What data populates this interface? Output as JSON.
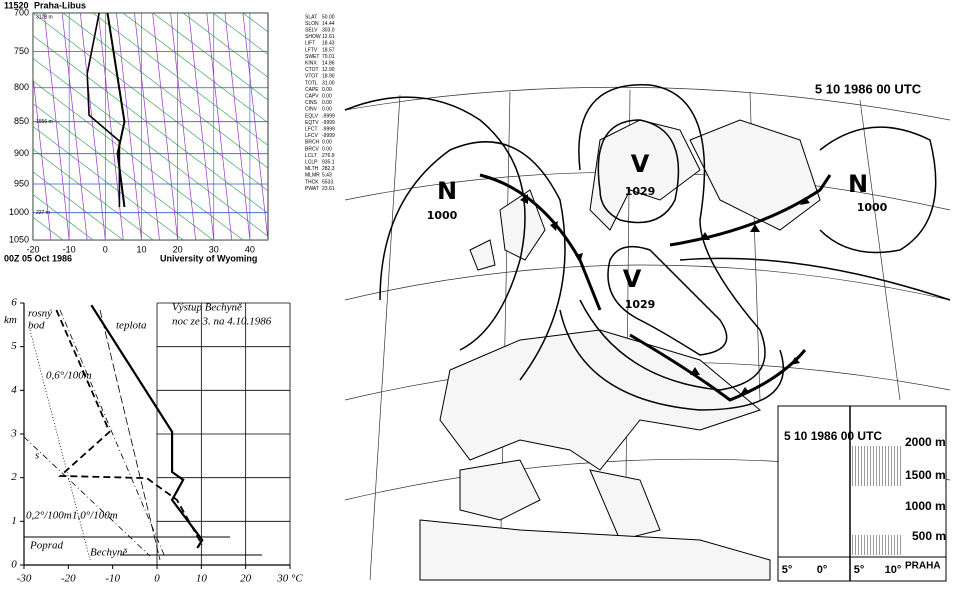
{
  "sounding": {
    "station": "11520",
    "name": "Praha-Libus",
    "time": "00Z 05 Oct 1986",
    "source": "University of Wyoming",
    "ylim": [
      700,
      1050
    ],
    "yticks": [
      700,
      750,
      800,
      850,
      900,
      950,
      1000,
      1050
    ],
    "xlim": [
      -20,
      45
    ],
    "xticks": [
      -20,
      -10,
      0,
      10,
      20,
      30,
      40
    ],
    "height_labels": [
      "3128 m",
      "1556 m",
      "227 m"
    ],
    "temperature": {
      "pressure": [
        700,
        850,
        900,
        990
      ],
      "values": [
        0.6,
        5.3,
        3.4,
        5.3
      ]
    },
    "dew_point": {
      "pressure": [
        700,
        780,
        840,
        880,
        990
      ],
      "values": [
        -1.7,
        -5,
        -4.5,
        3.9,
        3.9
      ]
    },
    "indices": [
      [
        "SLAT",
        "50.00"
      ],
      [
        "SLON",
        "14.44"
      ],
      [
        "SELV",
        "303.0"
      ],
      [
        "SHOW",
        "12.61"
      ],
      [
        "LIFT",
        "18.43"
      ],
      [
        "LFTV",
        "18.57"
      ],
      [
        "SWET",
        "70.01"
      ],
      [
        "KINX",
        "14.86"
      ],
      [
        "CTOT",
        "12.90"
      ],
      [
        "VTOT",
        "18.90"
      ],
      [
        "TOTL",
        "31.00"
      ],
      [
        "CAPE",
        "0.00"
      ],
      [
        "CAPV",
        "0.00"
      ],
      [
        "CINS",
        "0.00"
      ],
      [
        "CINV",
        "0.00"
      ],
      [
        "EQLV",
        "-9999"
      ],
      [
        "EQTV",
        "-9999"
      ],
      [
        "LFCT",
        "-9999"
      ],
      [
        "LFCV",
        "-9999"
      ],
      [
        "BRCH",
        "0.00"
      ],
      [
        "BRCV",
        "0.00"
      ],
      [
        "LCLT",
        "276.9"
      ],
      [
        "LCLP",
        "935.1"
      ],
      [
        "MLTH",
        "282.3"
      ],
      [
        "MLMR",
        "5.43"
      ],
      [
        "THCK",
        "5533."
      ],
      [
        "PWAT",
        "23.61"
      ]
    ]
  },
  "profile": {
    "title": "Výstup Bechyně",
    "subtitle": "noc ze 3. na 4.10.1986",
    "y_label": "km",
    "xlim": [
      -30,
      30
    ],
    "ylim": [
      0,
      6
    ],
    "xticks": [
      -30,
      -20,
      -10,
      0,
      10,
      20,
      {
        "value": 30,
        "label": "30 °C"
      }
    ],
    "yticks": [
      0,
      1,
      2,
      3,
      4,
      5,
      6
    ],
    "temperature": {
      "label": "teplota",
      "height": [
        5.95,
        3.05,
        2.13,
        1.95,
        1.49,
        0.57,
        0.39
      ],
      "values": [
        -14.8,
        3.4,
        3.4,
        5.9,
        3.4,
        10.2,
        9.1
      ]
    },
    "dew_point": {
      "label_lines": [
        "rosný",
        "bod"
      ],
      "height": [
        5.84,
        3.05,
        2.04,
        1.99,
        1.49,
        0.46
      ],
      "values": [
        -22.7,
        -10.7,
        -21.8,
        -2.3,
        4.5,
        10.2
      ]
    },
    "annotations": [
      "0,6°/100m",
      "0,2°/100m",
      "1,0°/100m",
      "Poprad",
      "Bechyně",
      "s"
    ]
  },
  "map": {
    "title": "5 10 1986 00 UTC",
    "pressure_centers": [
      [
        "N",
        "1000"
      ],
      [
        "V",
        "1029"
      ],
      [
        "V",
        "1029"
      ],
      [
        "N",
        "1000"
      ]
    ],
    "inset": {
      "title": "5 10 1986 00 UTC",
      "levels": [
        "2000 m",
        "1500 m",
        "1000 m",
        "500 m"
      ],
      "station": "PRAHA",
      "longitudes": [
        "5°",
        "0°",
        "5°",
        "10°"
      ]
    }
  }
}
